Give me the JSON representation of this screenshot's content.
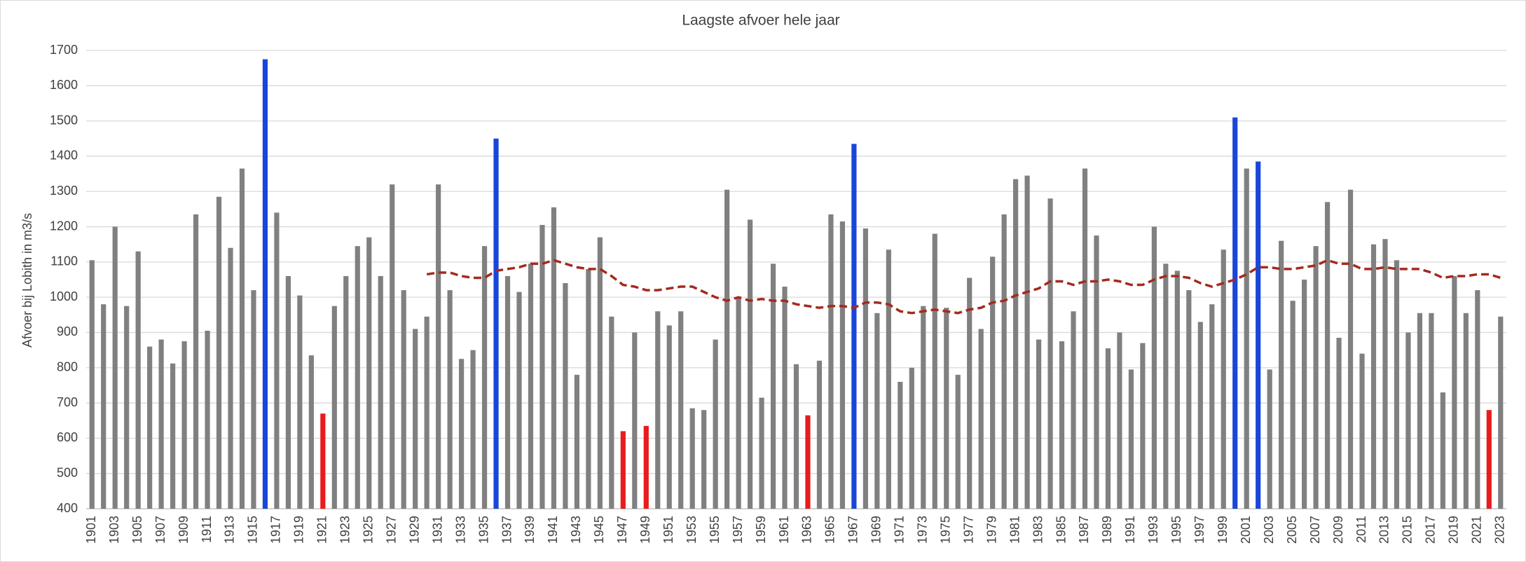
{
  "chart_data": {
    "type": "bar",
    "title": "Laagste afvoer hele jaar",
    "ylabel": "Afvoer bij Lobith in m3/s",
    "categories": [
      "1901",
      null,
      "1903",
      null,
      "1905",
      null,
      "1907",
      null,
      "1909",
      null,
      "1911",
      null,
      "1913",
      null,
      "1915",
      null,
      "1917",
      null,
      "1919",
      null,
      "1921",
      null,
      "1923",
      null,
      "1925",
      null,
      "1927",
      null,
      "1929",
      null,
      "1931",
      null,
      "1933",
      null,
      "1935",
      null,
      "1937",
      null,
      "1939",
      null,
      "1941",
      null,
      "1943",
      null,
      "1945",
      null,
      "1947",
      null,
      "1949",
      null,
      "1951",
      null,
      "1953",
      null,
      "1955",
      null,
      "1957",
      null,
      "1959",
      null,
      "1961",
      null,
      "1963",
      null,
      "1965",
      null,
      "1967",
      null,
      "1969",
      null,
      "1971",
      null,
      "1973",
      null,
      "1975",
      null,
      "1977",
      null,
      "1979",
      null,
      "1981",
      null,
      "1983",
      null,
      "1985",
      null,
      "1987",
      null,
      "1989",
      null,
      "1991",
      null,
      "1993",
      null,
      "1995",
      null,
      "1997",
      null,
      "1999",
      null,
      "2001",
      null,
      "2003",
      null,
      "2005",
      null,
      "2007",
      null,
      "2009",
      null,
      "2011",
      null,
      "2013",
      null,
      "2015",
      null,
      "2017",
      null,
      "2019",
      null,
      "2021",
      null,
      "2023"
    ],
    "series": [
      {
        "type": "bar",
        "values": [
          1105,
          980,
          1200,
          975,
          1130,
          860,
          880,
          812,
          875,
          1235,
          905,
          1285,
          1140,
          1365,
          1020,
          1675,
          1240,
          1060,
          1005,
          835,
          670,
          975,
          1060,
          1145,
          1170,
          1060,
          1320,
          1020,
          910,
          945,
          1320,
          1020,
          825,
          850,
          1145,
          1450,
          1060,
          1015,
          1095,
          1205,
          1255,
          1040,
          780,
          1080,
          1170,
          945,
          620,
          900,
          635,
          960,
          920,
          960,
          685,
          680,
          880,
          1305,
          1000,
          1220,
          715,
          1095,
          1030,
          810,
          665,
          820,
          1235,
          1215,
          1435,
          1195,
          955,
          1135,
          760,
          800,
          975,
          1180,
          970,
          780,
          1055,
          910,
          1115,
          1235,
          1335,
          1345,
          880,
          1280,
          875,
          960,
          1365,
          1175,
          855,
          900,
          795,
          870,
          1200,
          1095,
          1075,
          1020,
          930,
          980,
          1135,
          1510,
          1365,
          1385,
          795,
          1160,
          990,
          1050,
          1145,
          1270,
          885,
          1305,
          840,
          1150,
          1165,
          1105,
          900,
          955,
          955,
          730,
          1060,
          955,
          1020,
          680,
          945
        ],
        "colors": [
          "#808080",
          "#808080",
          "#808080",
          "#808080",
          "#808080",
          "#808080",
          "#808080",
          "#808080",
          "#808080",
          "#808080",
          "#808080",
          "#808080",
          "#808080",
          "#808080",
          "#808080",
          "#1a46d8",
          "#808080",
          "#808080",
          "#808080",
          "#808080",
          "#e81c1c",
          "#808080",
          "#808080",
          "#808080",
          "#808080",
          "#808080",
          "#808080",
          "#808080",
          "#808080",
          "#808080",
          "#808080",
          "#808080",
          "#808080",
          "#808080",
          "#808080",
          "#1a46d8",
          "#808080",
          "#808080",
          "#808080",
          "#808080",
          "#808080",
          "#808080",
          "#808080",
          "#808080",
          "#808080",
          "#808080",
          "#e81c1c",
          "#808080",
          "#e81c1c",
          "#808080",
          "#808080",
          "#808080",
          "#808080",
          "#808080",
          "#808080",
          "#808080",
          "#808080",
          "#808080",
          "#808080",
          "#808080",
          "#808080",
          "#808080",
          "#e81c1c",
          "#808080",
          "#808080",
          "#808080",
          "#1a46d8",
          "#808080",
          "#808080",
          "#808080",
          "#808080",
          "#808080",
          "#808080",
          "#808080",
          "#808080",
          "#808080",
          "#808080",
          "#808080",
          "#808080",
          "#808080",
          "#808080",
          "#808080",
          "#808080",
          "#808080",
          "#808080",
          "#808080",
          "#808080",
          "#808080",
          "#808080",
          "#808080",
          "#808080",
          "#808080",
          "#808080",
          "#808080",
          "#808080",
          "#808080",
          "#808080",
          "#808080",
          "#808080",
          "#1a46d8",
          "#808080",
          "#1a46d8",
          "#808080",
          "#808080",
          "#808080",
          "#808080",
          "#808080",
          "#808080",
          "#808080",
          "#808080",
          "#808080",
          "#808080",
          "#808080",
          "#808080",
          "#808080",
          "#808080",
          "#808080",
          "#808080",
          "#808080",
          "#808080",
          "#808080",
          "#e81c1c",
          "#808080"
        ]
      },
      {
        "type": "line",
        "color": "#a52a1e",
        "dashed": true,
        "values": [
          null,
          null,
          null,
          null,
          null,
          null,
          null,
          null,
          null,
          null,
          null,
          null,
          null,
          null,
          null,
          null,
          null,
          null,
          null,
          null,
          null,
          null,
          null,
          null,
          null,
          null,
          null,
          null,
          null,
          1065,
          1070,
          1070,
          1060,
          1055,
          1055,
          1075,
          1080,
          1085,
          1095,
          1095,
          1105,
          1095,
          1085,
          1080,
          1080,
          1060,
          1035,
          1030,
          1020,
          1020,
          1025,
          1030,
          1030,
          1015,
          1000,
          990,
          1000,
          990,
          995,
          990,
          990,
          980,
          975,
          970,
          975,
          975,
          970,
          985,
          985,
          980,
          960,
          955,
          960,
          965,
          960,
          955,
          965,
          970,
          985,
          990,
          1005,
          1015,
          1025,
          1045,
          1045,
          1035,
          1045,
          1045,
          1050,
          1045,
          1035,
          1035,
          1050,
          1060,
          1060,
          1055,
          1040,
          1030,
          1040,
          1050,
          1065,
          1085,
          1085,
          1080,
          1080,
          1085,
          1090,
          1105,
          1095,
          1095,
          1080,
          1080,
          1085,
          1080,
          1080,
          1080,
          1070,
          1055,
          1060,
          1060,
          1065,
          1065,
          1055
        ]
      }
    ],
    "ylim": [
      400,
      1700
    ],
    "yticks": [
      400,
      500,
      600,
      700,
      800,
      900,
      1000,
      1100,
      1200,
      1300,
      1400,
      1500,
      1600,
      1700
    ],
    "grid": true
  }
}
